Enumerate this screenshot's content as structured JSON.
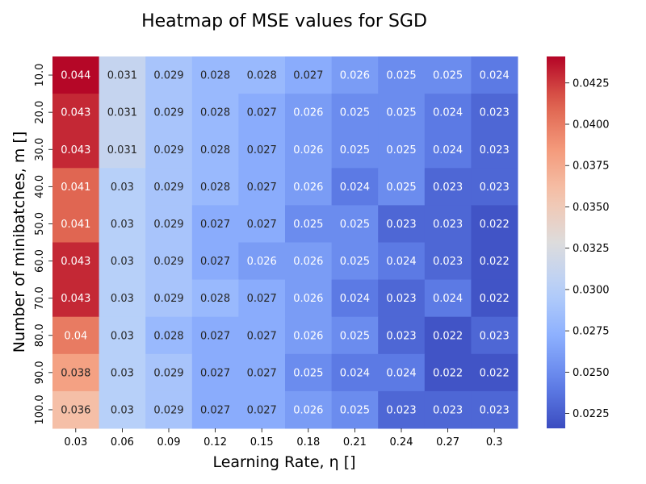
{
  "chart_data": {
    "type": "heatmap",
    "title": "Heatmap of MSE values for SGD",
    "xlabel": "Learning Rate, η []",
    "ylabel": "Number of minibatches, m []",
    "x_categories": [
      "0.03",
      "0.06",
      "0.09",
      "0.12",
      "0.15",
      "0.18",
      "0.21",
      "0.24",
      "0.27",
      "0.3"
    ],
    "y_categories": [
      "10.0",
      "20.0",
      "30.0",
      "40.0",
      "50.0",
      "60.0",
      "70.0",
      "80.0",
      "90.0",
      "100.0"
    ],
    "values": [
      [
        0.044,
        0.031,
        0.029,
        0.028,
        0.028,
        0.027,
        0.026,
        0.025,
        0.025,
        0.024
      ],
      [
        0.043,
        0.031,
        0.029,
        0.028,
        0.027,
        0.026,
        0.025,
        0.025,
        0.024,
        0.023
      ],
      [
        0.043,
        0.031,
        0.029,
        0.028,
        0.027,
        0.026,
        0.025,
        0.025,
        0.024,
        0.023
      ],
      [
        0.041,
        0.03,
        0.029,
        0.028,
        0.027,
        0.026,
        0.024,
        0.025,
        0.023,
        0.023
      ],
      [
        0.041,
        0.03,
        0.029,
        0.027,
        0.027,
        0.025,
        0.025,
        0.023,
        0.023,
        0.022
      ],
      [
        0.043,
        0.03,
        0.029,
        0.027,
        0.026,
        0.026,
        0.025,
        0.024,
        0.023,
        0.022
      ],
      [
        0.043,
        0.03,
        0.029,
        0.028,
        0.027,
        0.026,
        0.024,
        0.023,
        0.024,
        0.022
      ],
      [
        0.04,
        0.03,
        0.028,
        0.027,
        0.027,
        0.026,
        0.025,
        0.023,
        0.022,
        0.023
      ],
      [
        0.038,
        0.03,
        0.029,
        0.027,
        0.027,
        0.025,
        0.024,
        0.024,
        0.022,
        0.022
      ],
      [
        0.036,
        0.03,
        0.029,
        0.027,
        0.027,
        0.026,
        0.025,
        0.023,
        0.023,
        0.023
      ]
    ],
    "colormap": "coolwarm",
    "color_range": [
      0.0216,
      0.0441
    ],
    "colorbar_ticks": [
      "0.0225",
      "0.0250",
      "0.0275",
      "0.0300",
      "0.0325",
      "0.0350",
      "0.0375",
      "0.0400",
      "0.0425"
    ]
  }
}
